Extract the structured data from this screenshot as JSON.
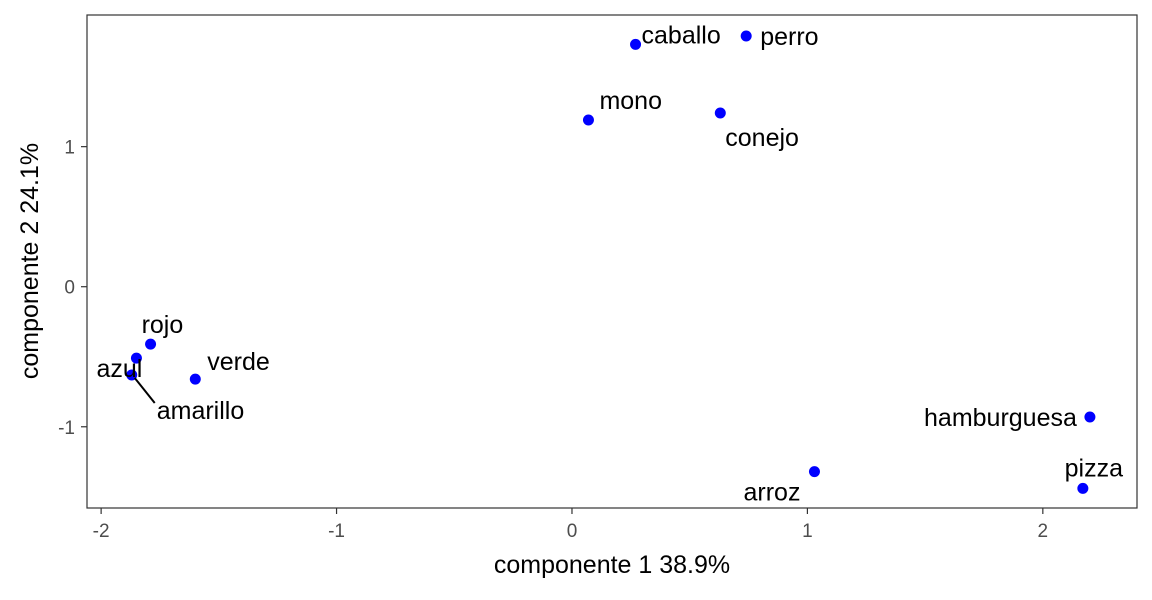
{
  "chart_data": {
    "type": "scatter",
    "title": "",
    "xlabel": "componente 1   38.9%",
    "ylabel": "componente 2   24.1%",
    "xlim": [
      -2.06,
      2.4
    ],
    "ylim": [
      -1.58,
      1.94
    ],
    "x_ticks": [
      -2,
      -1,
      0,
      1,
      2
    ],
    "x_tick_labels": [
      "-2",
      "-1",
      "0",
      "1",
      "2"
    ],
    "y_ticks": [
      -1,
      0,
      1
    ],
    "y_tick_labels": [
      "-1",
      "0",
      "1"
    ],
    "grid": false,
    "legend": "none",
    "point_color": "#0000ff",
    "points": [
      {
        "label": "caballo",
        "x": 0.27,
        "y": 1.73
      },
      {
        "label": "perro",
        "x": 0.74,
        "y": 1.79
      },
      {
        "label": "mono",
        "x": 0.07,
        "y": 1.19
      },
      {
        "label": "conejo",
        "x": 0.63,
        "y": 1.24
      },
      {
        "label": "rojo",
        "x": -1.79,
        "y": -0.41
      },
      {
        "label": "verde",
        "x": -1.6,
        "y": -0.66
      },
      {
        "label": "azul",
        "x": -1.85,
        "y": -0.51
      },
      {
        "label": "amarillo",
        "x": -1.87,
        "y": -0.63
      },
      {
        "label": "hamburguesa",
        "x": 2.2,
        "y": -0.93
      },
      {
        "label": "arroz",
        "x": 1.03,
        "y": -1.32
      },
      {
        "label": "pizza",
        "x": 2.17,
        "y": -1.44
      }
    ]
  }
}
